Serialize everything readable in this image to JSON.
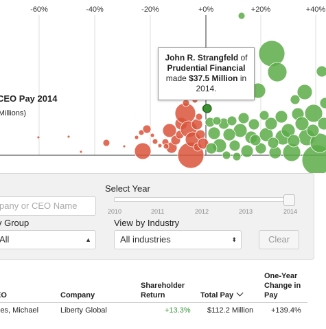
{
  "chart_data": {
    "type": "scatter",
    "x_ticks": [
      "-60%",
      "-40%",
      "-20%",
      "+0%",
      "+20%",
      "+40%"
    ],
    "ylabel": "CEO Pay 2014",
    "ysub": "(Millions)",
    "highlight": {
      "ceo": "John R. Strangfeld",
      "company": "Prudential Financial",
      "pay": 37.5,
      "year": 2014
    },
    "colors": {
      "negative": "#d9533a",
      "positive": "#5cab48",
      "axis": "#333333",
      "grid": "#dddddd"
    }
  },
  "tooltip": {
    "name": "John R. Strangfeld",
    "of": " of",
    "company": "Prudential Financial",
    "made": "made ",
    "amount": "$37.5 Million",
    "in": " in",
    "year": "2014."
  },
  "filters": {
    "select_year_label": "Select Year",
    "search_placeholder": "pany or CEO Name",
    "years": [
      "2010",
      "2011",
      "2012",
      "2013",
      "2014"
    ],
    "selected_year": "2014",
    "group_label": "v Group",
    "group_value": "All",
    "industry_label": "View by Industry",
    "industry_value": "All industries",
    "clear_label": "Clear"
  },
  "table": {
    "headers": {
      "ceo": "EO",
      "company": "Company",
      "return": "Shareholder Return",
      "pay": "Total Pay",
      "change": "One-Year Change in Pay"
    },
    "rows": [
      {
        "ceo": "ies, Michael",
        "company": "Liberty Global",
        "return": "+13.3%",
        "pay": "$112.2 Million",
        "change": "+139.4%"
      }
    ]
  }
}
